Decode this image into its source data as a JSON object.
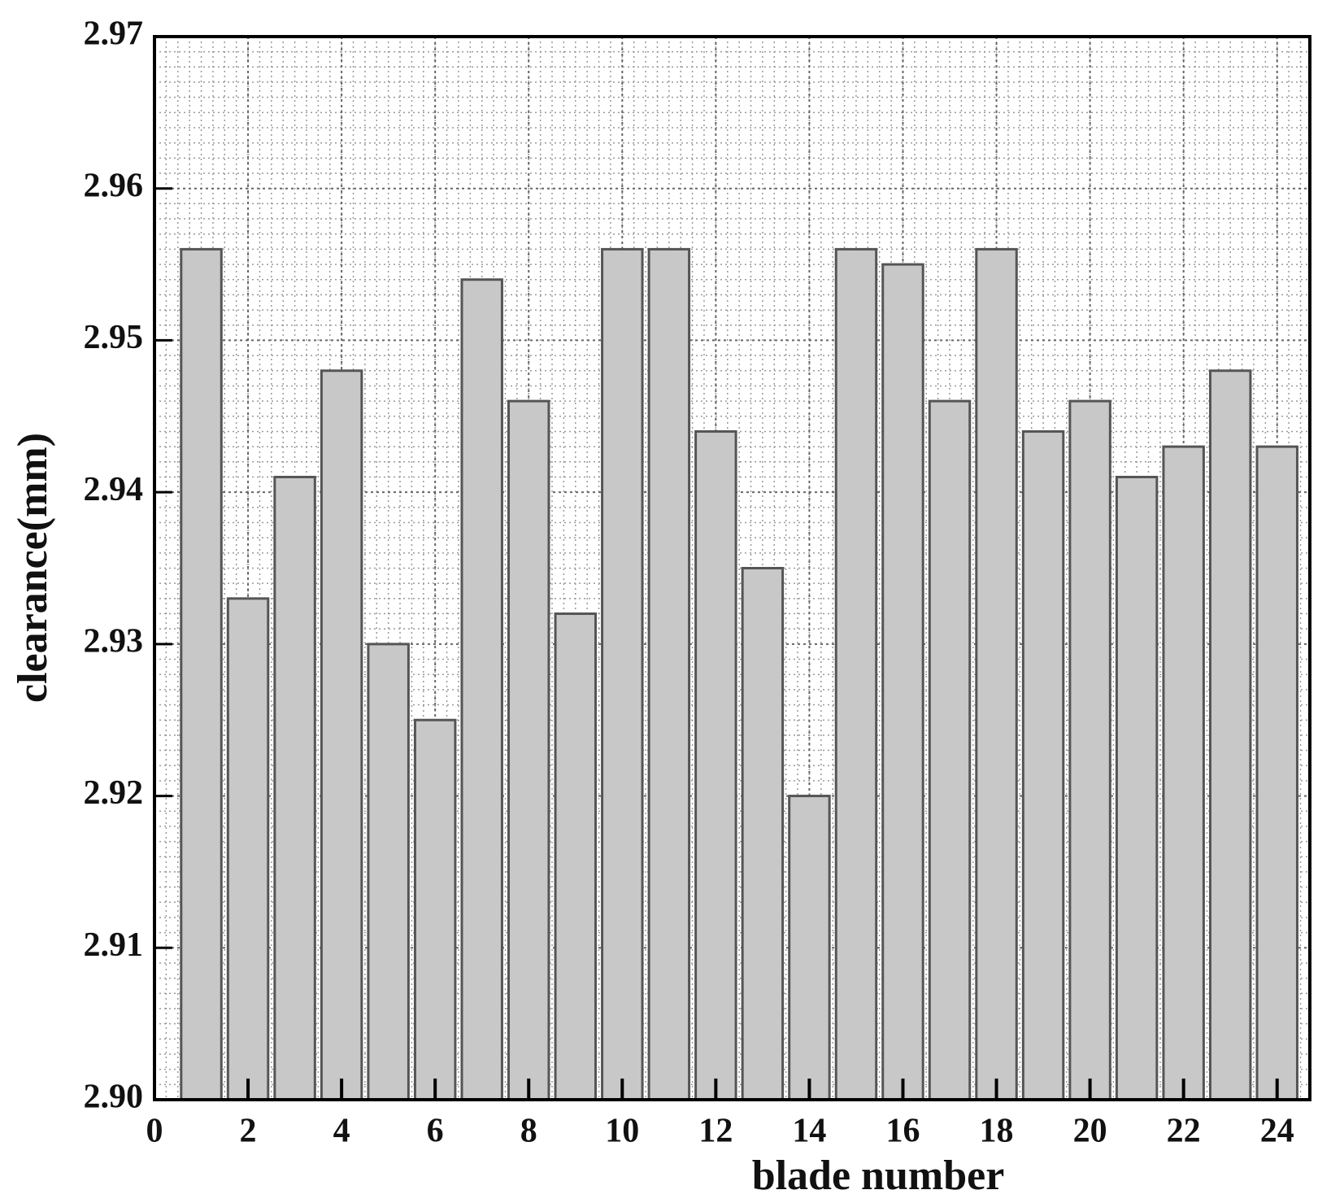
{
  "chart_data": {
    "type": "bar",
    "x": [
      1,
      2,
      3,
      4,
      5,
      6,
      7,
      8,
      9,
      10,
      11,
      12,
      13,
      14,
      15,
      16,
      17,
      18,
      19,
      20,
      21,
      22,
      23,
      24
    ],
    "values": [
      2.956,
      2.933,
      2.941,
      2.948,
      2.93,
      2.925,
      2.954,
      2.946,
      2.932,
      2.956,
      2.956,
      2.944,
      2.935,
      2.92,
      2.956,
      2.955,
      2.946,
      2.956,
      2.944,
      2.946,
      2.941,
      2.943,
      2.948,
      2.943
    ],
    "color": "#c8c8c8",
    "xlabel": "blade number",
    "ylabel": "clearance(mm)",
    "xlim": [
      0,
      24.7
    ],
    "xticks": [
      0,
      2,
      4,
      6,
      8,
      10,
      12,
      14,
      16,
      18,
      20,
      22,
      24
    ],
    "ylim": [
      2.9,
      2.97
    ],
    "yticks": [
      {
        "value": 2.9,
        "label": "2.90"
      },
      2.91,
      2.92,
      2.93,
      2.94,
      2.95,
      2.96,
      2.97
    ],
    "grid": true
  }
}
